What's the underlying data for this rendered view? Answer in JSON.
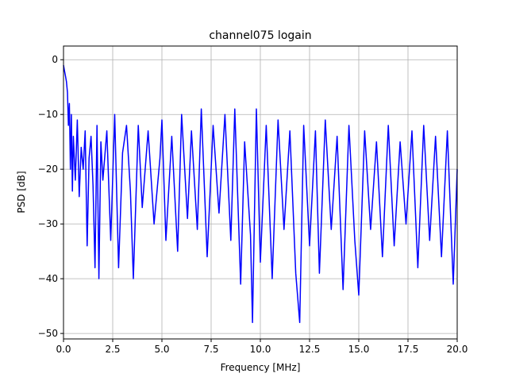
{
  "chart_data": {
    "type": "line",
    "title": "channel075 logain",
    "xlabel": "Frequency [MHz]",
    "ylabel": "PSD [dB]",
    "xlim": [
      0,
      20
    ],
    "ylim": [
      -51,
      2.5
    ],
    "xticks": [
      0,
      2.5,
      5,
      7.5,
      10,
      12.5,
      15,
      17.5,
      20
    ],
    "xtick_labels": [
      "0.0",
      "2.5",
      "5.0",
      "7.5",
      "10.0",
      "12.5",
      "15.0",
      "17.5",
      "20.0"
    ],
    "yticks": [
      0,
      -10,
      -20,
      -30,
      -40,
      -50
    ],
    "ytick_labels": [
      "0",
      "−10",
      "−20",
      "−30",
      "−40",
      "−50"
    ],
    "grid": true,
    "line_color": "#0000ff",
    "series": [
      {
        "x": [
          0.0,
          0.05,
          0.1,
          0.15,
          0.2,
          0.25,
          0.3,
          0.35,
          0.4,
          0.45,
          0.5,
          0.6,
          0.7,
          0.8,
          0.9,
          1.0,
          1.1,
          1.2,
          1.3,
          1.4,
          1.5,
          1.6,
          1.7,
          1.8,
          1.9,
          2.0,
          2.2,
          2.4,
          2.6,
          2.8,
          3.0,
          3.2,
          3.4,
          3.55,
          3.8,
          4.0,
          4.3,
          4.6,
          4.9,
          5.0,
          5.2,
          5.5,
          5.8,
          6.0,
          6.3,
          6.5,
          6.8,
          7.0,
          7.3,
          7.6,
          7.9,
          8.2,
          8.5,
          8.7,
          9.0,
          9.2,
          9.5,
          9.6,
          9.8,
          10.0,
          10.3,
          10.6,
          10.9,
          11.2,
          11.5,
          11.8,
          12.0,
          12.2,
          12.5,
          12.8,
          13.0,
          13.3,
          13.6,
          13.9,
          14.2,
          14.5,
          14.8,
          15.0,
          15.3,
          15.6,
          15.9,
          16.2,
          16.5,
          16.8,
          17.1,
          17.4,
          17.7,
          18.0,
          18.3,
          18.6,
          18.9,
          19.2,
          19.5,
          19.8,
          20.0
        ],
        "values": [
          -1,
          -2,
          -3,
          -4,
          -6,
          -12,
          -8,
          -20,
          -10,
          -24,
          -14,
          -22,
          -11,
          -25,
          -16,
          -20,
          -13,
          -34,
          -18,
          -14,
          -23,
          -38,
          -12,
          -40,
          -15,
          -22,
          -13,
          -33,
          -10,
          -38,
          -17,
          -12,
          -24,
          -40,
          -12,
          -27,
          -13,
          -30,
          -18,
          -11,
          -33,
          -14,
          -35,
          -10,
          -29,
          -13,
          -31,
          -9,
          -36,
          -12,
          -28,
          -10,
          -33,
          -9,
          -41,
          -15,
          -32,
          -48,
          -9,
          -37,
          -12,
          -40,
          -11,
          -31,
          -13,
          -39,
          -48,
          -12,
          -34,
          -13,
          -39,
          -11,
          -31,
          -14,
          -42,
          -12,
          -33,
          -43,
          -13,
          -31,
          -15,
          -36,
          -12,
          -34,
          -15,
          -30,
          -13,
          -38,
          -12,
          -33,
          -14,
          -36,
          -13,
          -41,
          -20
        ]
      }
    ]
  }
}
